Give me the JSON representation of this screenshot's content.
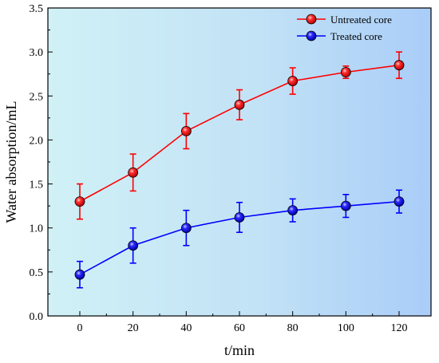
{
  "chart_data": {
    "type": "line",
    "title": "",
    "xlabel": "t/min",
    "ylabel": "Water absorption/mL",
    "xlim": [
      -12,
      132
    ],
    "ylim": [
      0.0,
      3.5
    ],
    "x_ticks": [
      0,
      20,
      40,
      60,
      80,
      100,
      120
    ],
    "x_tick_labels": [
      "0",
      "20",
      "40",
      "60",
      "80",
      "100",
      "120"
    ],
    "y_ticks": [
      0.0,
      0.5,
      1.0,
      1.5,
      2.0,
      2.5,
      3.0,
      3.5
    ],
    "y_tick_labels": [
      "0.0",
      "0.5",
      "1.0",
      "1.5",
      "2.0",
      "2.5",
      "3.0",
      "3.5"
    ],
    "grid": false,
    "legend_position": "top-right",
    "background": "cyan-to-blue horizontal gradient",
    "series": [
      {
        "name": "Untreated core",
        "color": "#ff0000",
        "marker": "circle",
        "x": [
          0,
          20,
          40,
          60,
          80,
          100,
          120
        ],
        "y": [
          1.3,
          1.63,
          2.1,
          2.4,
          2.67,
          2.77,
          2.85
        ],
        "error": [
          0.2,
          0.21,
          0.2,
          0.17,
          0.15,
          0.07,
          0.15
        ]
      },
      {
        "name": "Treated core",
        "color": "#0000ff",
        "marker": "circle",
        "x": [
          0,
          20,
          40,
          60,
          80,
          100,
          120
        ],
        "y": [
          0.47,
          0.8,
          1.0,
          1.12,
          1.2,
          1.25,
          1.3
        ],
        "error": [
          0.15,
          0.2,
          0.2,
          0.17,
          0.13,
          0.13,
          0.13
        ]
      }
    ]
  }
}
